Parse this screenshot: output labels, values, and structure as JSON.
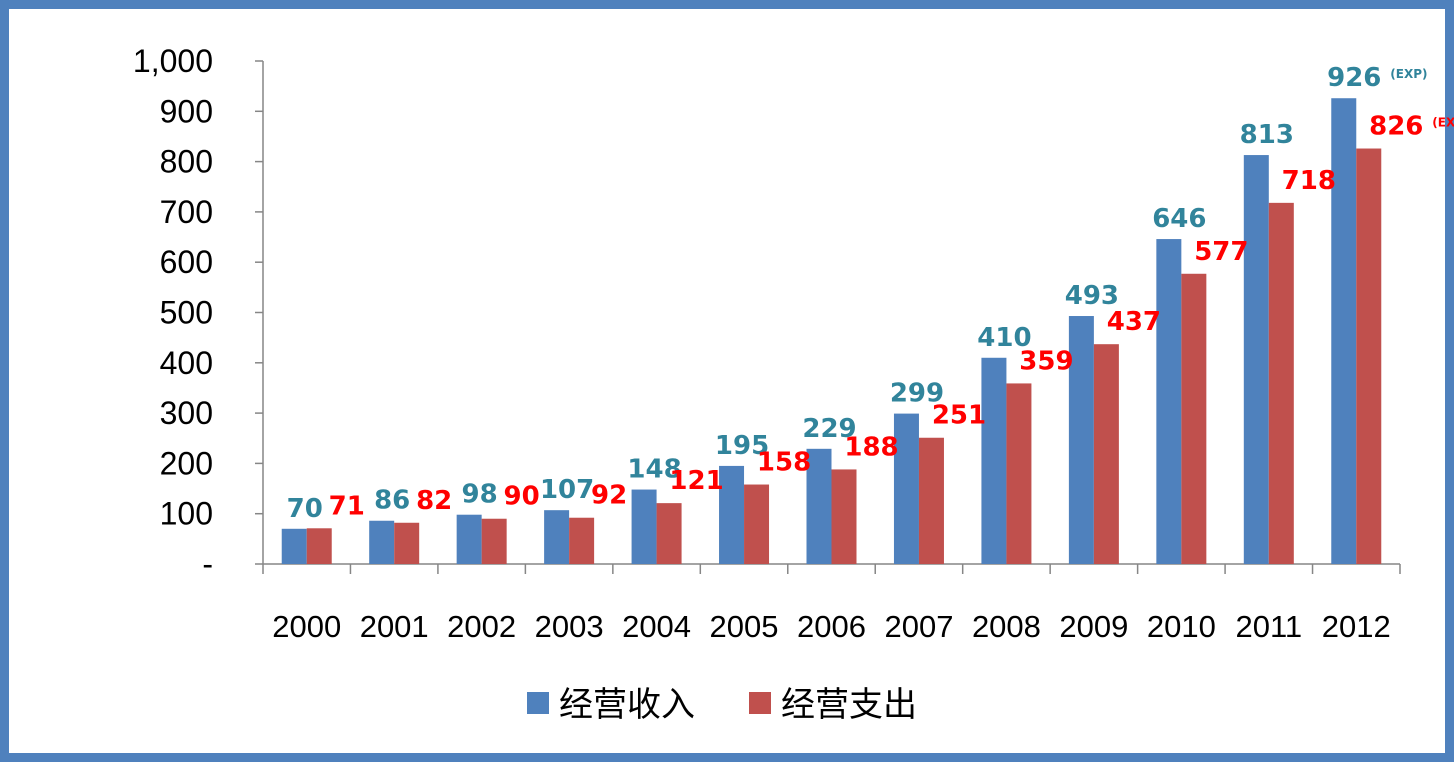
{
  "chart_data": {
    "type": "bar",
    "categories": [
      "2000",
      "2001",
      "2002",
      "2003",
      "2004",
      "2005",
      "2006",
      "2007",
      "2008",
      "2009",
      "2010",
      "2011",
      "2012"
    ],
    "series": [
      {
        "name": "经营收入",
        "color": "#4f81bd",
        "label_color": "#31849b",
        "values": [
          70,
          86,
          98,
          107,
          148,
          195,
          229,
          299,
          410,
          493,
          646,
          813,
          926
        ]
      },
      {
        "name": "经营支出",
        "color": "#c0504d",
        "label_color": "#ff0000",
        "values": [
          71,
          82,
          90,
          92,
          121,
          158,
          188,
          251,
          359,
          437,
          577,
          718,
          826
        ]
      }
    ],
    "ylim": [
      0,
      1000
    ],
    "yticks": [
      "-",
      "100",
      "200",
      "300",
      "400",
      "500",
      "600",
      "700",
      "800",
      "900",
      "1,000"
    ],
    "annotations": [
      {
        "category": "2012",
        "series": 0,
        "text": "(EXP)"
      },
      {
        "category": "2012",
        "series": 1,
        "text": "(EXP)"
      }
    ],
    "legend_position": "bottom",
    "grid": false
  }
}
